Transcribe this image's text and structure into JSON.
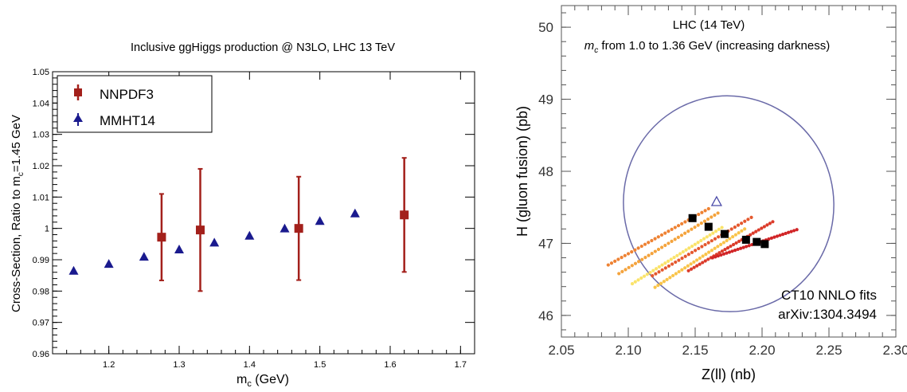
{
  "chart_data": [
    {
      "type": "scatter",
      "title": "Inclusive ggHiggs production @ N3LO, LHC 13 TeV",
      "xlabel_main": "m",
      "xlabel_sub": "c",
      "xlabel_rest": " (GeV)",
      "ylabel_main": "Cross-Section, Ratio to m",
      "ylabel_sub": "c",
      "ylabel_rest": "=1.45 GeV",
      "xlim": [
        1.12,
        1.72
      ],
      "ylim": [
        0.96,
        1.05
      ],
      "x_ticks": [
        1.2,
        1.3,
        1.4,
        1.5,
        1.6,
        1.7
      ],
      "x_tick_labels": [
        "1.2",
        "1.3",
        "1.4",
        "1.5",
        "1.6",
        "1.7"
      ],
      "y_ticks": [
        0.96,
        0.97,
        0.98,
        0.99,
        1.0,
        1.01,
        1.02,
        1.03,
        1.04,
        1.05
      ],
      "y_tick_labels": [
        "0.96",
        "0.97",
        "0.98",
        "0.99",
        "1",
        "1.01",
        "1.02",
        "1.03",
        "1.04",
        "1.05"
      ],
      "legend_position": "top-left",
      "series": [
        {
          "name": "NNPDF3",
          "marker": "square",
          "color": "#a3201b",
          "x": [
            1.275,
            1.33,
            1.47,
            1.62
          ],
          "y": [
            0.9972,
            0.9995,
            1.0,
            1.0043
          ],
          "err": [
            0.0138,
            0.0195,
            0.0165,
            0.0182
          ]
        },
        {
          "name": "MMHT14",
          "marker": "triangle",
          "color": "#1a1a8e",
          "x": [
            1.15,
            1.2,
            1.25,
            1.3,
            1.35,
            1.4,
            1.45,
            1.5,
            1.55
          ],
          "y": [
            0.9865,
            0.9887,
            0.991,
            0.9933,
            0.9955,
            0.9977,
            1.0,
            1.0024,
            1.0048
          ]
        }
      ]
    },
    {
      "type": "scatter",
      "annotation_line1": "LHC (14 TeV)",
      "annotation_line2_main": "m",
      "annotation_line2_sub": "c",
      "annotation_line2_rest": " from 1.0 to 1.36 GeV (increasing darkness)",
      "corner_text_line1": "CT10 NNLO fits",
      "corner_text_line2": "arXiv:1304.3494",
      "xlabel": "Z(ll) (nb)",
      "ylabel": "H (gluon fusion) (pb)",
      "xlim": [
        2.05,
        2.3
      ],
      "ylim": [
        45.7,
        50.3
      ],
      "x_ticks": [
        2.05,
        2.1,
        2.15,
        2.2,
        2.25,
        2.3
      ],
      "x_tick_labels": [
        "2.05",
        "2.10",
        "2.15",
        "2.20",
        "2.25",
        "2.30"
      ],
      "y_ticks": [
        46,
        47,
        48,
        49,
        50
      ],
      "y_tick_labels": [
        "46",
        "47",
        "48",
        "49",
        "50"
      ],
      "ellipse": {
        "cx": 2.175,
        "cy": 47.55,
        "rx": 0.0785,
        "ry": 1.5,
        "angle_deg": -14,
        "color": "#6a6aa8"
      },
      "open_triangle": {
        "x": 2.166,
        "y": 47.58,
        "color": "#4a4aa8"
      },
      "central_values": {
        "color": "#000000",
        "x": [
          2.148,
          2.16,
          2.172,
          2.188,
          2.196,
          2.202
        ],
        "y": [
          47.35,
          47.23,
          47.13,
          47.05,
          47.02,
          46.99
        ]
      },
      "bands": [
        {
          "color": "#fae36a",
          "x0": 2.103,
          "y0": 46.44,
          "x1": 2.17,
          "y1": 47.22
        },
        {
          "color": "#f9c44a",
          "x0": 2.12,
          "y0": 46.39,
          "x1": 2.187,
          "y1": 47.2
        },
        {
          "color": "#f4a33c",
          "x0": 2.093,
          "y0": 46.58,
          "x1": 2.167,
          "y1": 47.42
        },
        {
          "color": "#ee8233",
          "x0": 2.085,
          "y0": 46.7,
          "x1": 2.16,
          "y1": 47.48
        },
        {
          "color": "#e4582e",
          "x0": 2.118,
          "y0": 46.55,
          "x1": 2.192,
          "y1": 47.36
        },
        {
          "color": "#db3b2a",
          "x0": 2.145,
          "y0": 46.62,
          "x1": 2.208,
          "y1": 47.3
        },
        {
          "color": "#d12527",
          "x0": 2.163,
          "y0": 46.8,
          "x1": 2.226,
          "y1": 47.19
        }
      ]
    }
  ]
}
